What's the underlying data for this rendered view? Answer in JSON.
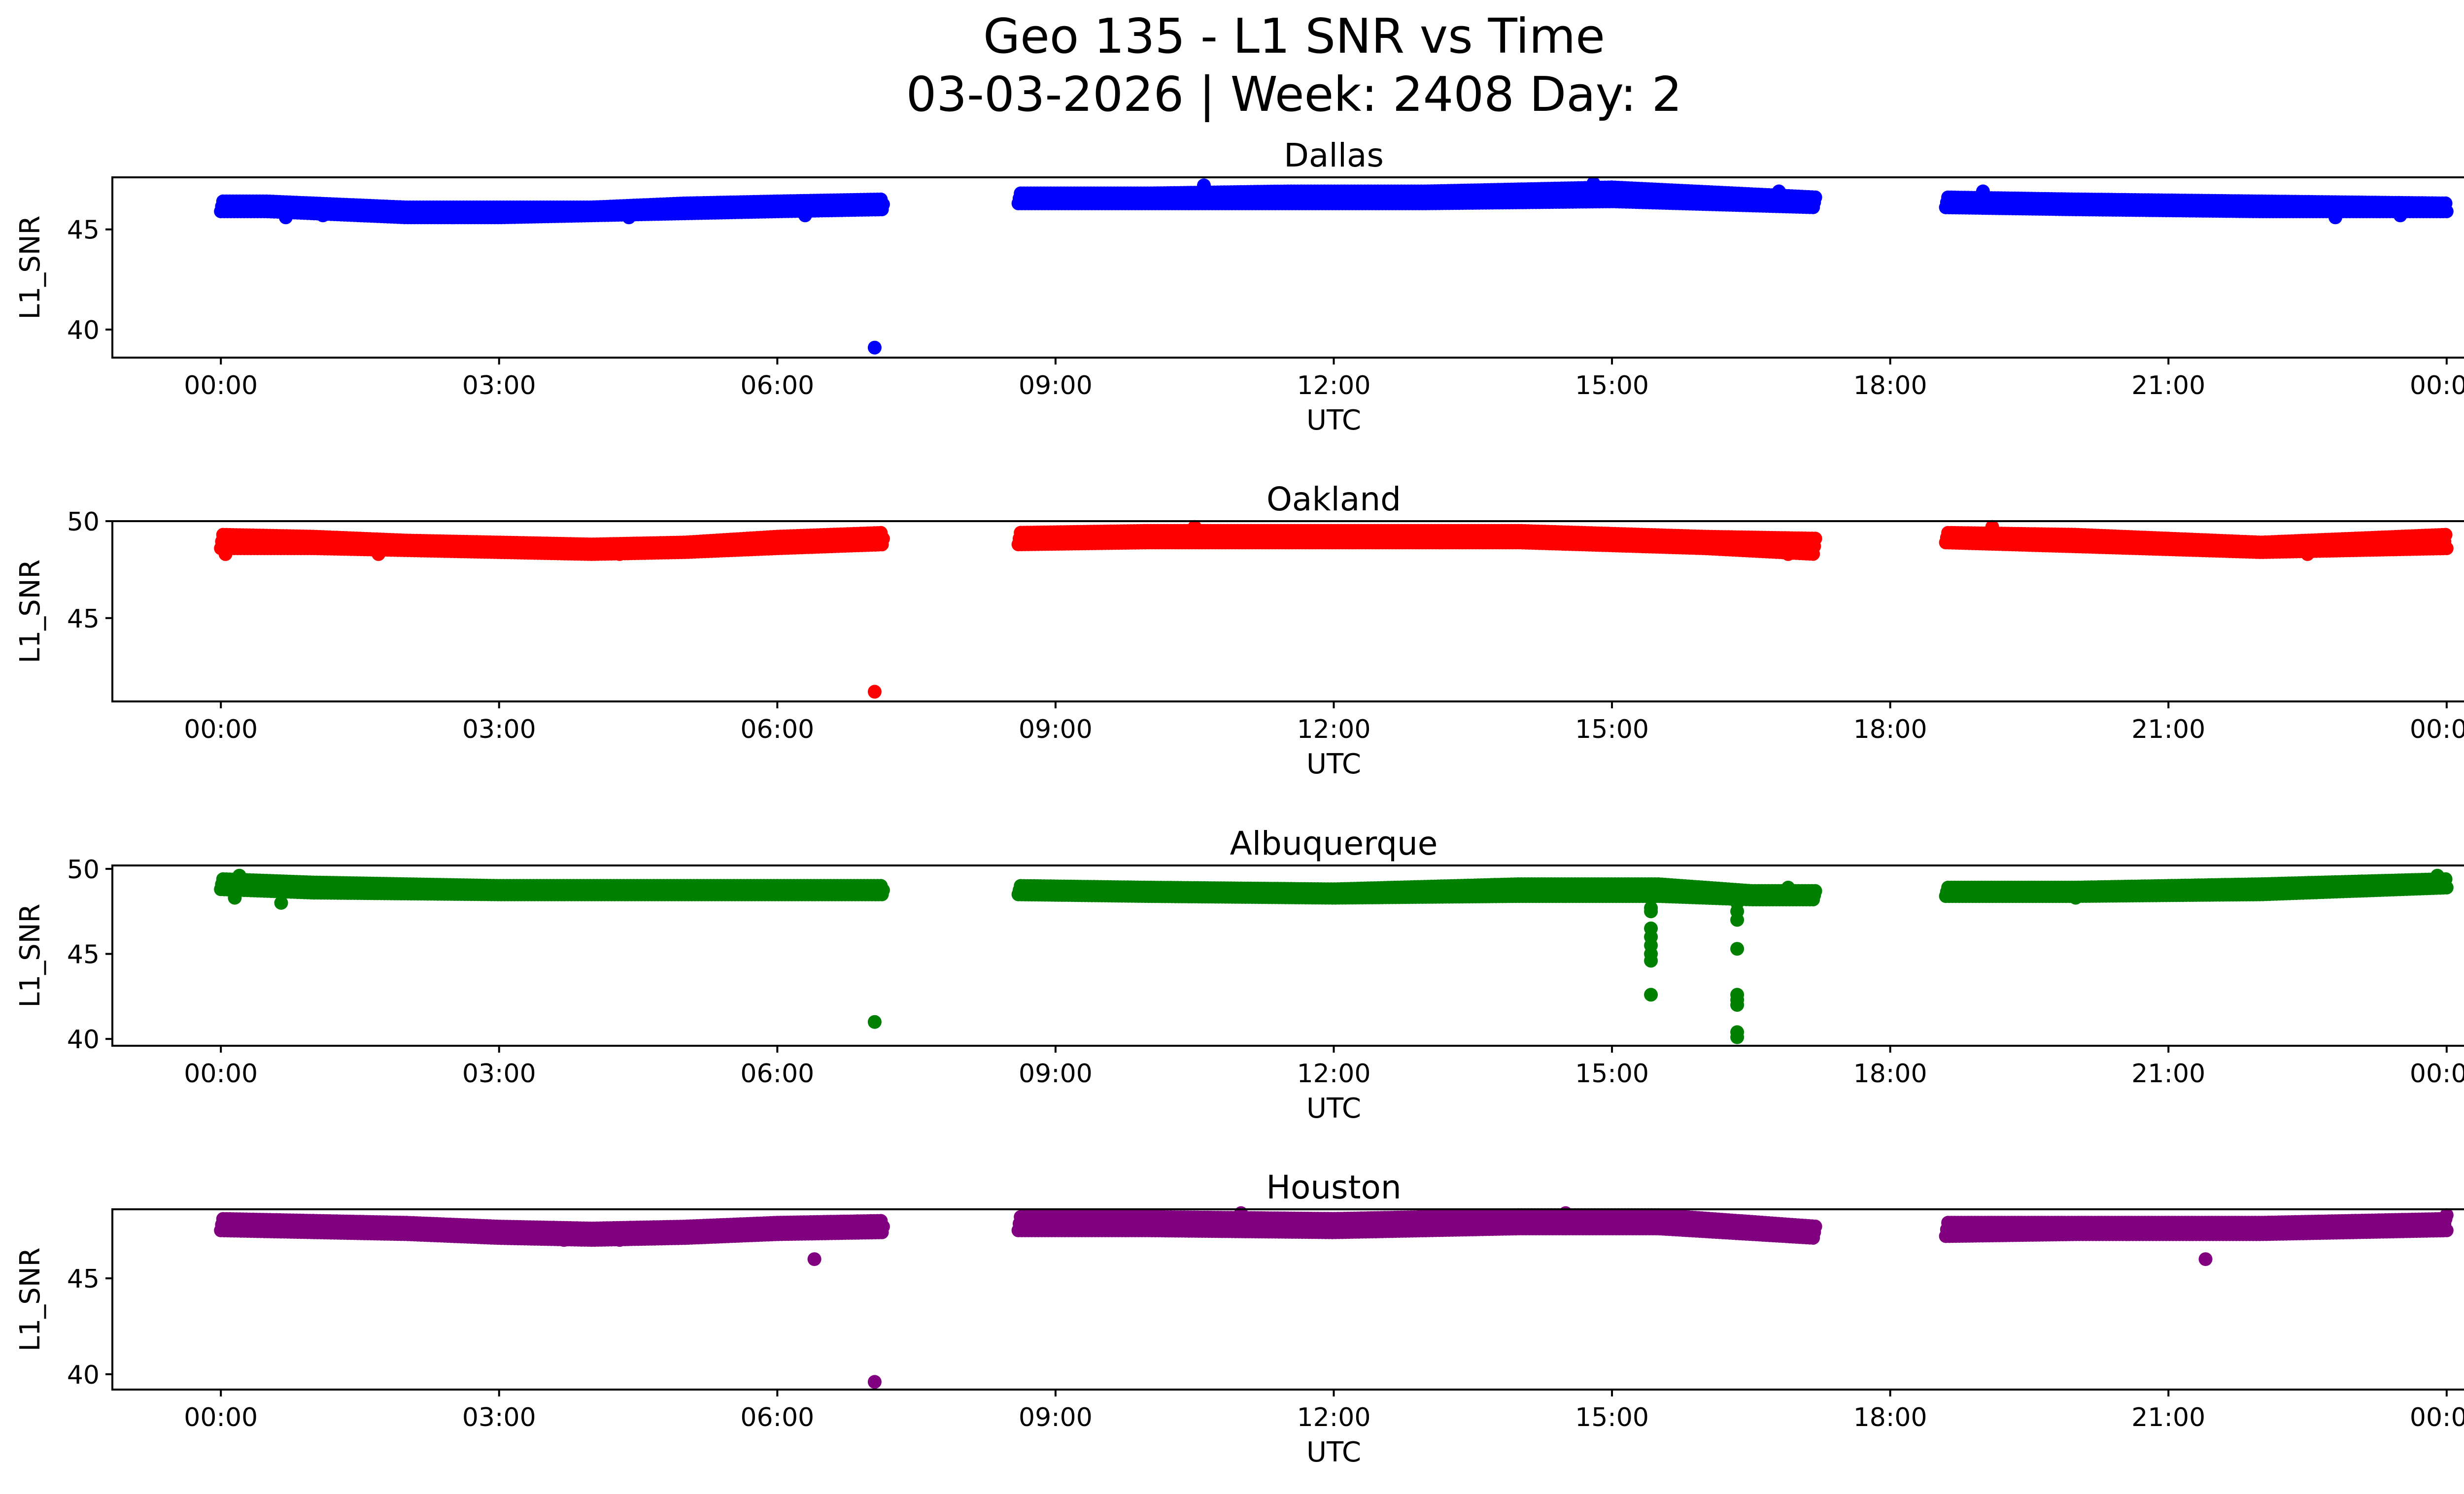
{
  "chart_data": {
    "type": "scatter",
    "title_line1": "Geo 135 - L1 SNR vs Time",
    "title_line2": "03-03-2026 | Week: 2408 Day: 2",
    "xlabel": "UTC",
    "ylabel": "L1_SNR",
    "x_unit": "hours UTC",
    "xlim": [
      -1.17,
      25.17
    ],
    "x_ticks": [
      0,
      3,
      6,
      9,
      12,
      15,
      18,
      21,
      24
    ],
    "x_tick_labels": [
      "00:00",
      "03:00",
      "06:00",
      "09:00",
      "12:00",
      "15:00",
      "18:00",
      "21:00",
      "00:00"
    ],
    "grid": false,
    "panels": [
      {
        "name": "Dallas",
        "color": "#0000ff",
        "ylim": [
          38.6,
          47.6
        ],
        "y_ticks": [
          40,
          45
        ],
        "y_tick_labels": [
          "40",
          "45"
        ],
        "bands": [
          {
            "x": [
              0.0,
              0.5,
              1.0,
              2.0,
              3.0,
              4.0,
              5.0,
              6.0,
              7.15
            ],
            "lo": [
              45.9,
              45.9,
              45.8,
              45.6,
              45.6,
              45.7,
              45.8,
              45.9,
              46.0
            ],
            "hi": [
              46.4,
              46.4,
              46.3,
              46.1,
              46.1,
              46.1,
              46.3,
              46.4,
              46.5
            ]
          },
          {
            "x": [
              8.6,
              10.0,
              11.5,
              13.0,
              15.0,
              17.2
            ],
            "lo": [
              46.3,
              46.3,
              46.3,
              46.3,
              46.4,
              46.1
            ],
            "hi": [
              46.8,
              46.8,
              46.9,
              46.9,
              47.1,
              46.6
            ]
          },
          {
            "x": [
              18.6,
              20.0,
              22.0,
              24.0
            ],
            "lo": [
              46.1,
              46.0,
              45.9,
              45.9
            ],
            "hi": [
              46.6,
              46.5,
              46.4,
              46.3
            ]
          }
        ],
        "outliers": [
          [
            7.05,
            39.1
          ],
          [
            0.7,
            45.6
          ],
          [
            1.1,
            45.7
          ],
          [
            2.5,
            45.6
          ],
          [
            4.4,
            45.6
          ],
          [
            6.3,
            45.7
          ],
          [
            10.6,
            47.2
          ],
          [
            14.8,
            47.3
          ],
          [
            16.8,
            46.9
          ],
          [
            19.0,
            46.9
          ],
          [
            22.8,
            45.6
          ],
          [
            23.5,
            45.7
          ]
        ]
      },
      {
        "name": "Oakland",
        "color": "#ff0000",
        "ylim": [
          40.7,
          50.0
        ],
        "y_ticks": [
          45,
          50
        ],
        "y_tick_labels": [
          "45",
          "50"
        ],
        "bands": [
          {
            "x": [
              0.0,
              1.0,
              2.0,
              3.0,
              4.0,
              5.0,
              6.0,
              7.15
            ],
            "lo": [
              48.6,
              48.6,
              48.5,
              48.4,
              48.3,
              48.4,
              48.6,
              48.8
            ],
            "hi": [
              49.3,
              49.2,
              49.0,
              48.9,
              48.8,
              48.9,
              49.2,
              49.4
            ]
          },
          {
            "x": [
              8.6,
              10.0,
              12.0,
              14.0,
              16.0,
              17.2
            ],
            "lo": [
              48.8,
              48.9,
              48.9,
              48.9,
              48.6,
              48.3
            ],
            "hi": [
              49.4,
              49.5,
              49.5,
              49.5,
              49.2,
              49.1
            ]
          },
          {
            "x": [
              18.6,
              20.0,
              22.0,
              24.0
            ],
            "lo": [
              48.9,
              48.7,
              48.4,
              48.6
            ],
            "hi": [
              49.4,
              49.3,
              48.9,
              49.3
            ]
          }
        ],
        "outliers": [
          [
            7.05,
            41.2
          ],
          [
            0.05,
            48.3
          ],
          [
            1.7,
            48.3
          ],
          [
            4.3,
            48.3
          ],
          [
            10.5,
            49.7
          ],
          [
            16.9,
            48.3
          ],
          [
            19.1,
            49.7
          ],
          [
            22.5,
            48.3
          ]
        ]
      },
      {
        "name": "Albuquerque",
        "color": "#008000",
        "ylim": [
          39.6,
          50.2
        ],
        "y_ticks": [
          40,
          45,
          50
        ],
        "y_tick_labels": [
          "40",
          "45",
          "50"
        ],
        "bands": [
          {
            "x": [
              0.0,
              1.0,
              3.0,
              5.0,
              7.15
            ],
            "lo": [
              48.8,
              48.6,
              48.5,
              48.5,
              48.5
            ],
            "hi": [
              49.4,
              49.2,
              49.0,
              49.0,
              49.0
            ]
          },
          {
            "x": [
              8.6,
              10.0,
              12.0,
              14.0,
              15.5,
              16.5,
              17.2
            ],
            "lo": [
              48.5,
              48.4,
              48.3,
              48.4,
              48.4,
              48.2,
              48.2
            ],
            "hi": [
              49.0,
              48.9,
              48.8,
              49.1,
              49.1,
              48.7,
              48.7
            ]
          },
          {
            "x": [
              18.6,
              20.0,
              22.0,
              24.0
            ],
            "lo": [
              48.4,
              48.4,
              48.5,
              48.9
            ],
            "hi": [
              48.9,
              48.9,
              49.1,
              49.4
            ]
          }
        ],
        "outliers": [
          [
            7.05,
            41.0
          ],
          [
            0.15,
            48.3
          ],
          [
            0.65,
            48.0
          ],
          [
            0.2,
            49.6
          ],
          [
            15.42,
            47.7
          ],
          [
            15.42,
            47.5
          ],
          [
            15.42,
            46.5
          ],
          [
            15.42,
            46.0
          ],
          [
            15.42,
            45.5
          ],
          [
            15.42,
            45.0
          ],
          [
            15.42,
            44.6
          ],
          [
            15.42,
            42.6
          ],
          [
            16.35,
            48.0
          ],
          [
            16.35,
            47.5
          ],
          [
            16.35,
            47.0
          ],
          [
            16.35,
            45.3
          ],
          [
            16.35,
            42.6
          ],
          [
            16.35,
            42.3
          ],
          [
            16.35,
            42.0
          ],
          [
            16.35,
            40.4
          ],
          [
            16.35,
            40.1
          ],
          [
            16.9,
            48.9
          ],
          [
            20.0,
            48.3
          ],
          [
            23.9,
            49.6
          ]
        ]
      },
      {
        "name": "Houston",
        "color": "#800080",
        "ylim": [
          39.2,
          48.6
        ],
        "y_ticks": [
          40,
          45
        ],
        "y_tick_labels": [
          "40",
          "45"
        ],
        "bands": [
          {
            "x": [
              0.0,
              1.0,
              2.0,
              3.0,
              4.0,
              5.0,
              6.0,
              7.15
            ],
            "lo": [
              47.5,
              47.4,
              47.3,
              47.1,
              47.0,
              47.1,
              47.3,
              47.4
            ],
            "hi": [
              48.1,
              48.0,
              47.9,
              47.7,
              47.6,
              47.7,
              47.9,
              48.0
            ]
          },
          {
            "x": [
              8.6,
              10.0,
              12.0,
              14.0,
              15.5,
              17.2
            ],
            "lo": [
              47.5,
              47.5,
              47.4,
              47.6,
              47.6,
              47.1
            ],
            "hi": [
              48.2,
              48.2,
              48.1,
              48.3,
              48.3,
              47.7
            ]
          },
          {
            "x": [
              18.6,
              20.0,
              22.0,
              24.0
            ],
            "lo": [
              47.2,
              47.3,
              47.3,
              47.5
            ],
            "hi": [
              47.9,
              47.9,
              47.9,
              48.1
            ]
          }
        ],
        "outliers": [
          [
            6.4,
            46.0
          ],
          [
            7.05,
            39.6
          ],
          [
            21.4,
            46.0
          ],
          [
            3.7,
            47.0
          ],
          [
            4.3,
            47.0
          ],
          [
            11.0,
            48.4
          ],
          [
            14.5,
            48.4
          ],
          [
            24.0,
            48.3
          ]
        ]
      }
    ]
  }
}
